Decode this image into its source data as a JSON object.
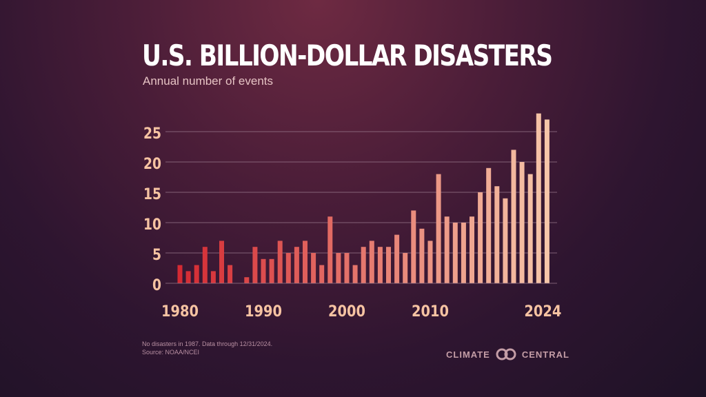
{
  "chart_data": {
    "type": "bar",
    "title": "U.S. BILLION-DOLLAR DISASTERS",
    "subtitle": "Annual number of events",
    "x": [
      1980,
      1981,
      1982,
      1983,
      1984,
      1985,
      1986,
      1987,
      1988,
      1989,
      1990,
      1991,
      1992,
      1993,
      1994,
      1995,
      1996,
      1997,
      1998,
      1999,
      2000,
      2001,
      2002,
      2003,
      2004,
      2005,
      2006,
      2007,
      2008,
      2009,
      2010,
      2011,
      2012,
      2013,
      2014,
      2015,
      2016,
      2017,
      2018,
      2019,
      2020,
      2021,
      2022,
      2023,
      2024
    ],
    "values": [
      3,
      2,
      3,
      6,
      2,
      7,
      3,
      0,
      1,
      6,
      4,
      4,
      7,
      5,
      6,
      7,
      5,
      3,
      11,
      5,
      5,
      3,
      6,
      7,
      6,
      6,
      8,
      5,
      12,
      9,
      7,
      18,
      11,
      10,
      10,
      11,
      15,
      19,
      16,
      14,
      22,
      20,
      18,
      28,
      27
    ],
    "x_tick_labels": [
      "1980",
      "1990",
      "2000",
      "2010",
      "2024"
    ],
    "y_tick_labels": [
      "0",
      "5",
      "10",
      "15",
      "20",
      "25"
    ],
    "ylim": [
      0,
      28
    ],
    "grid": true,
    "xlabel": "",
    "ylabel": "",
    "colors": {
      "start": "#d42a33",
      "end": "#f6c6a9",
      "grid": "#9a7a8e",
      "axis_text": "#f6c3a2"
    }
  },
  "footnotes": [
    "No disasters in 1987. Data through 12/31/2024.",
    "Source: NOAA/NCEI"
  ],
  "logo": {
    "left_word": "CLIMATE",
    "right_word": "CENTRAL",
    "mark_icon": "interlocking-rings-icon"
  }
}
